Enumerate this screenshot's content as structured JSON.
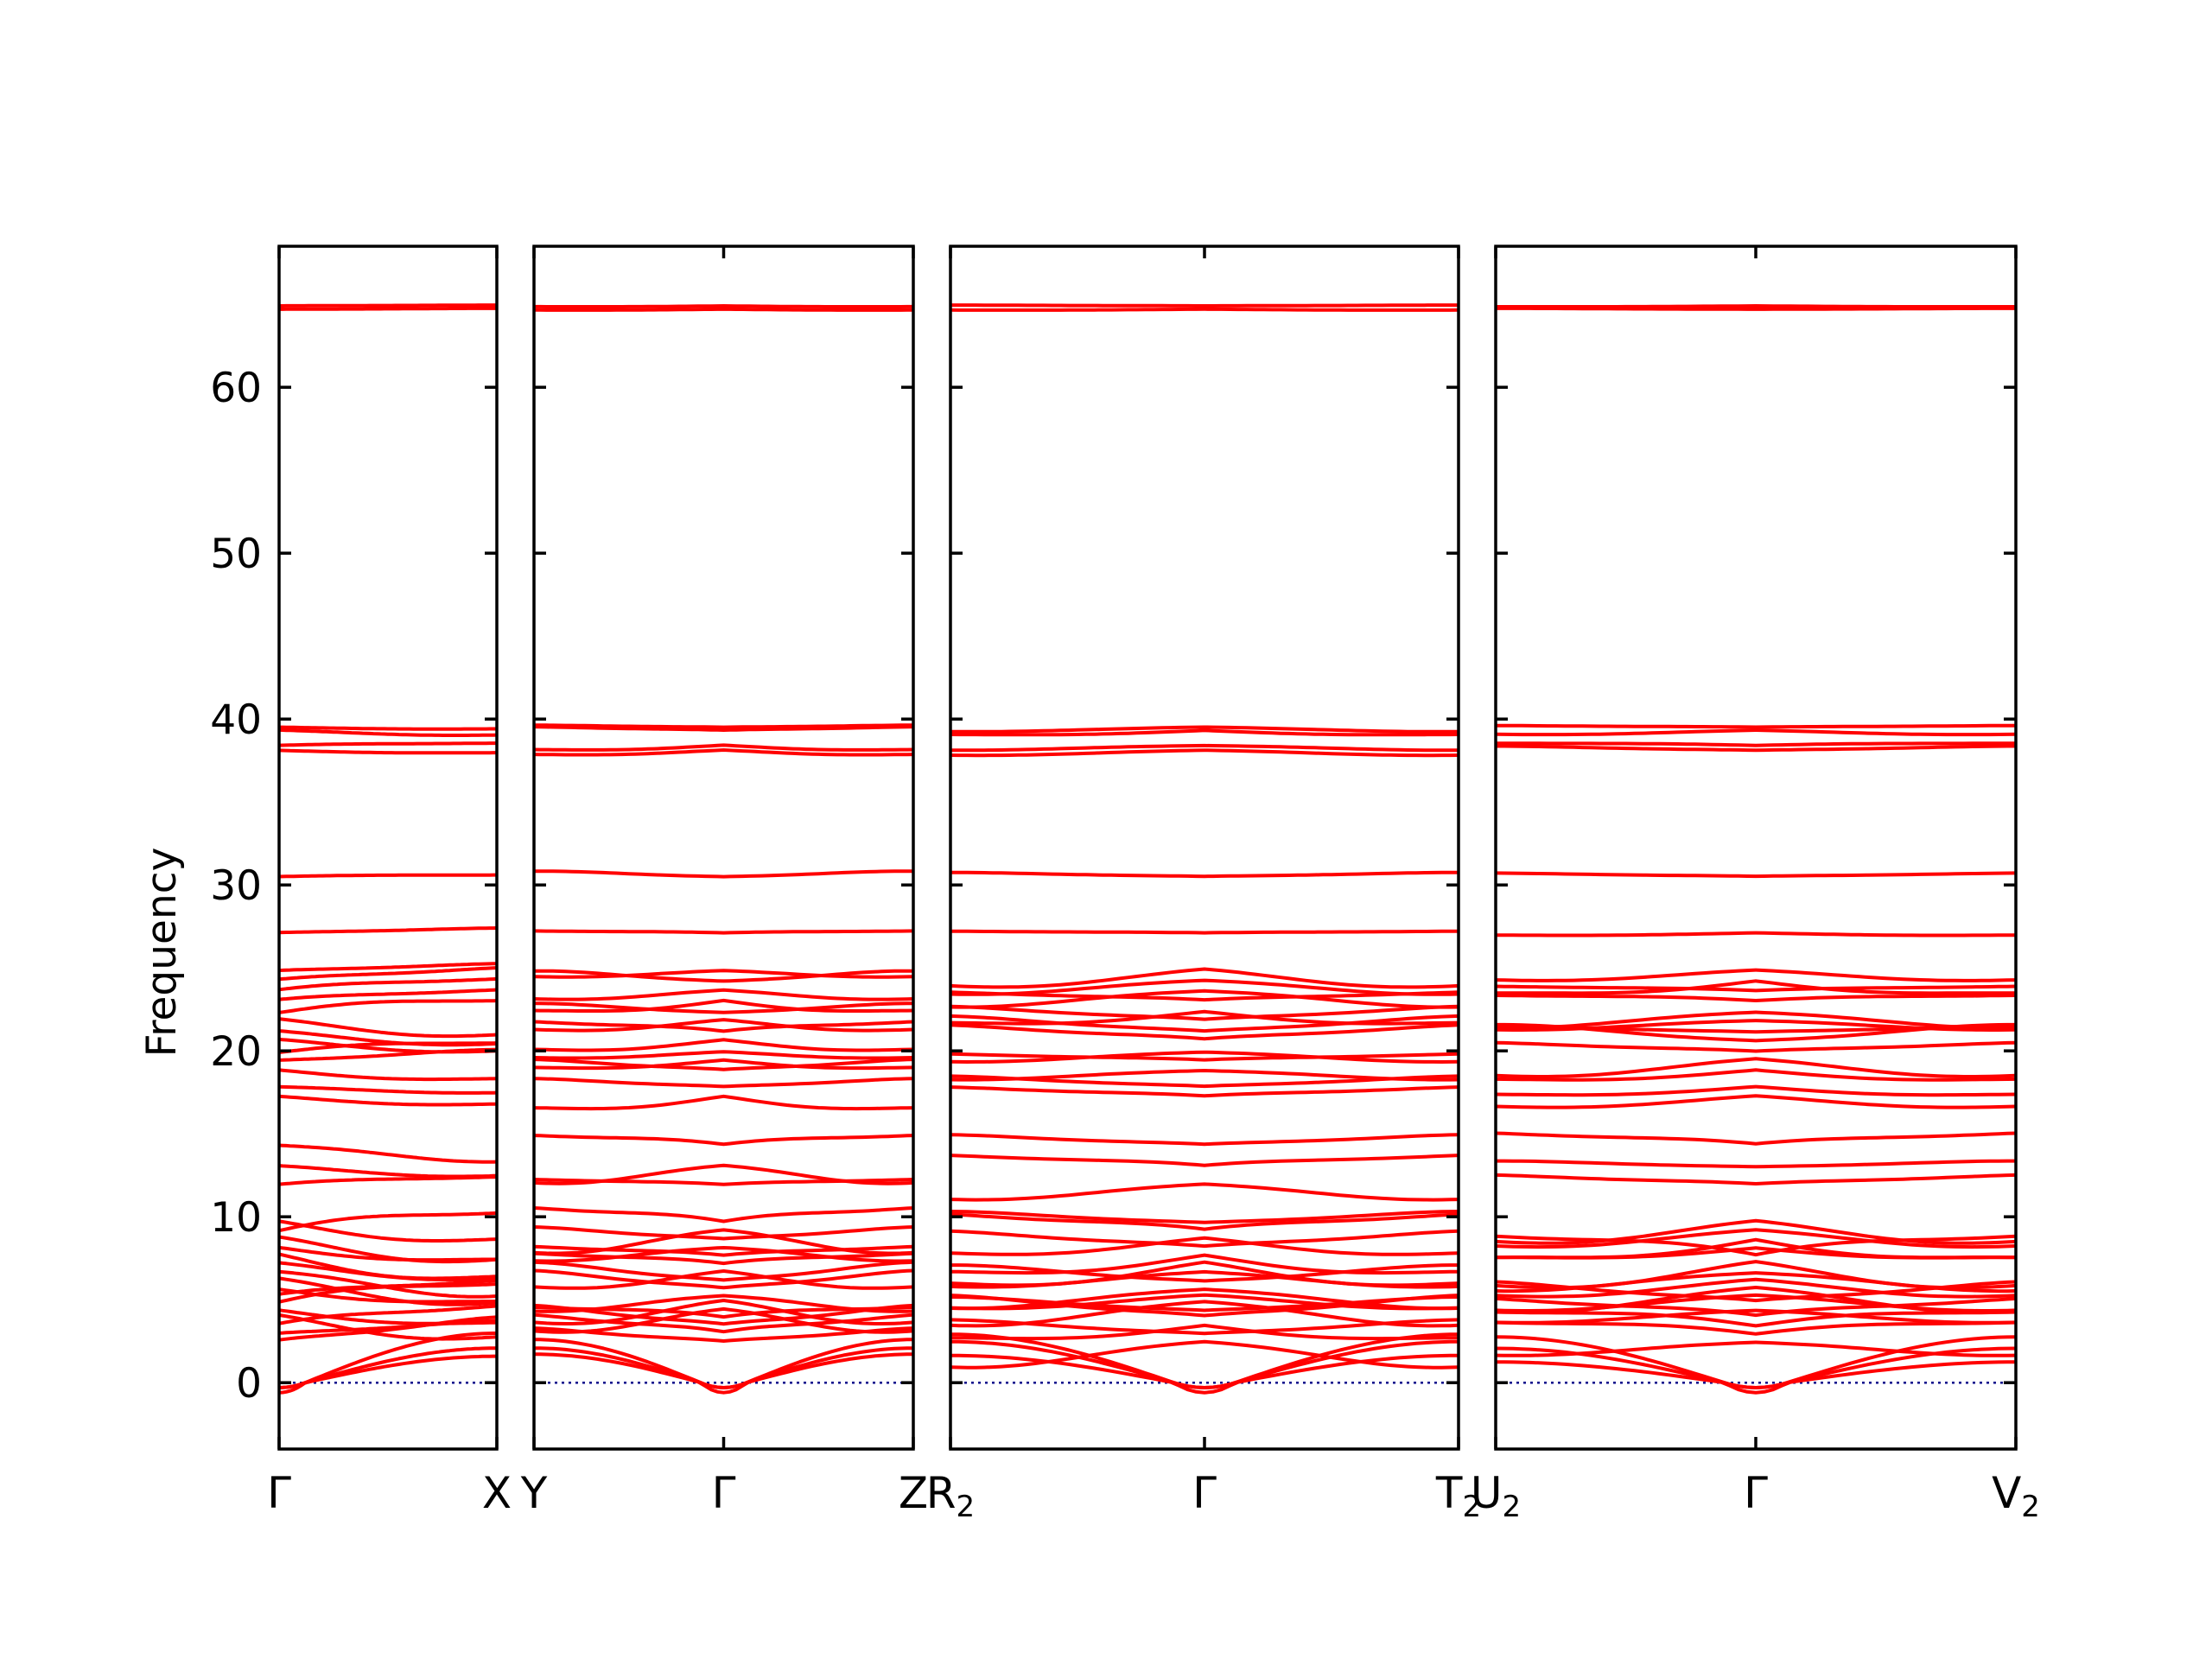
{
  "chart_data": {
    "type": "line",
    "title": "",
    "xlabel": "",
    "ylabel": "Frequency",
    "ylim": [
      -4,
      68.5
    ],
    "yticks": [
      0,
      10,
      20,
      30,
      40,
      50,
      60
    ],
    "grid": false,
    "legend": "none",
    "colors": {
      "bands": "#ff0000",
      "zero_line": "#00008b",
      "axes": "#000000"
    },
    "zero_reference_line": {
      "y": 0,
      "style": "dotted"
    },
    "segments": [
      {
        "path": [
          "Γ",
          "X"
        ],
        "labels": [
          {
            "text": "Γ",
            "sub": ""
          },
          {
            "text": "X",
            "sub": ""
          }
        ],
        "gamma_at": 0
      },
      {
        "path": [
          "Y",
          "Γ",
          "Z"
        ],
        "labels": [
          {
            "text": "Y",
            "sub": ""
          },
          {
            "text": "Γ",
            "sub": ""
          },
          {
            "text": "Z",
            "sub": ""
          }
        ],
        "gamma_at": 0.5
      },
      {
        "path": [
          "R2",
          "Γ",
          "T2"
        ],
        "labels": [
          {
            "text": "R",
            "sub": "2"
          },
          {
            "text": "Γ",
            "sub": ""
          },
          {
            "text": "T",
            "sub": "2"
          }
        ],
        "gamma_at": 0.5
      },
      {
        "path": [
          "U2",
          "Γ",
          "V2"
        ],
        "labels": [
          {
            "text": "U",
            "sub": "2"
          },
          {
            "text": "Γ",
            "sub": ""
          },
          {
            "text": "V",
            "sub": "2"
          }
        ],
        "gamma_at": 0.5
      }
    ],
    "band_levels_at_gamma": [
      0,
      0,
      0,
      2.4,
      2.9,
      3.4,
      3.9,
      4.3,
      4.8,
      5.2,
      5.6,
      6.1,
      6.6,
      7.1,
      7.6,
      8.1,
      8.6,
      9.1,
      9.6,
      11.9,
      13.0,
      14.3,
      17.2,
      17.8,
      18.8,
      19.4,
      19.9,
      20.6,
      21.1,
      21.8,
      22.3,
      23.0,
      23.6,
      24.2,
      24.8,
      27.1,
      30.5,
      38.1,
      38.4,
      39.3,
      39.5,
      64.7,
      64.9
    ],
    "acoustic_branches": {
      "count": 3,
      "min_frequency_near_gamma": -0.6
    }
  }
}
